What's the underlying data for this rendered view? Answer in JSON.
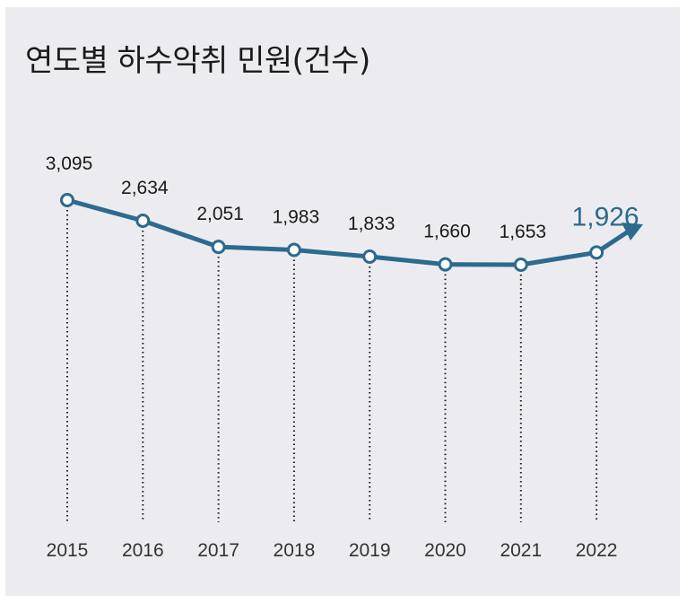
{
  "colors": {
    "background": "#ececf0",
    "line": "#2c6a8f",
    "highlight": "#2c6a8f",
    "text": "#1a1a1a"
  },
  "chart_data": {
    "type": "line",
    "title": "연도별 하수악취 민원(건수)",
    "xlabel": "",
    "ylabel": "",
    "grid": false,
    "categories": [
      "2015",
      "2016",
      "2017",
      "2018",
      "2019",
      "2020",
      "2021",
      "2022"
    ],
    "values": [
      3095,
      2634,
      2051,
      1983,
      1833,
      1660,
      1653,
      1926
    ],
    "labels": [
      "3,095",
      "2,634",
      "2,051",
      "1,983",
      "1,833",
      "1,660",
      "1,653",
      "1,926"
    ],
    "highlight_index": 7,
    "trend_arrow": true
  }
}
